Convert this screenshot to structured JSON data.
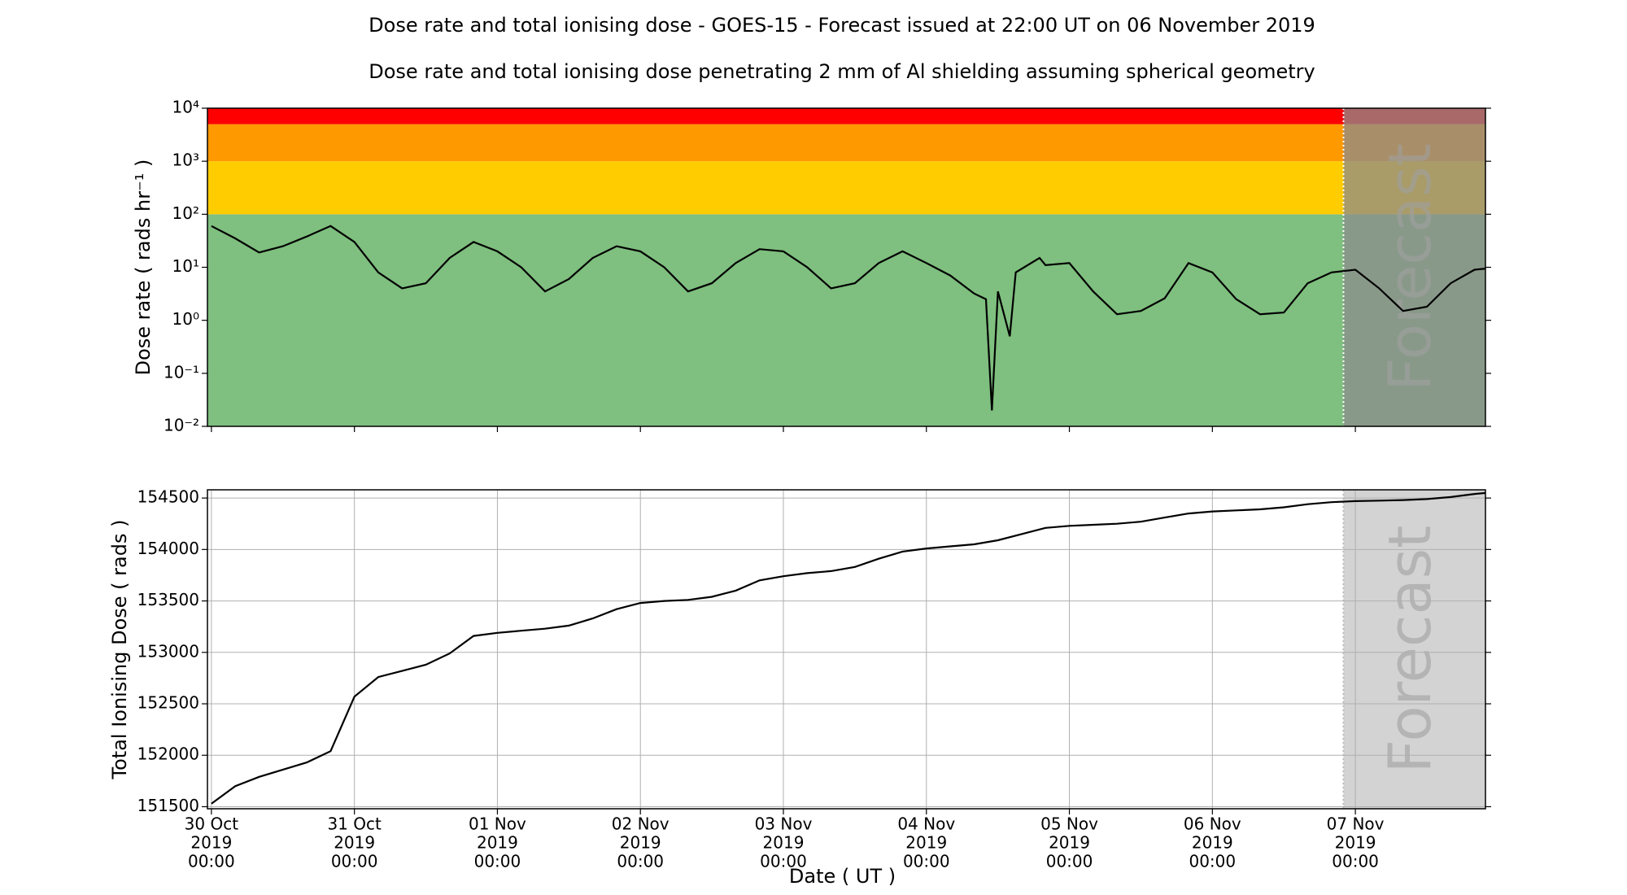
{
  "title": "Dose rate and total ionising dose - GOES-15 - Forecast issued at 22:00 UT on 06 November 2019",
  "subtitle": "Dose rate and total ionising dose penetrating 2 mm of Al shielding assuming spherical geometry",
  "chart_data": [
    {
      "type": "line",
      "log_y": true,
      "grid": false,
      "color": "#000000",
      "ylabel": "Dose rate ( rads hr⁻¹ )",
      "forecast_start": "2019-11-06T22:00",
      "forecast_label": "Forecast",
      "forecast_color": "rgba(140,140,140,0.75)",
      "bands": [
        {
          "from": 0.01,
          "to": 100,
          "color": "#7fbf7f"
        },
        {
          "from": 100,
          "to": 1000,
          "color": "#ffcc00"
        },
        {
          "from": 1000,
          "to": 5000,
          "color": "#ff9900"
        },
        {
          "from": 5000,
          "to": 10000,
          "color": "#ff0000"
        }
      ],
      "xlim": [
        "2019-10-29T23:20",
        "2019-11-07T21:50"
      ],
      "xticks": [
        {
          "value": "2019-10-30T00:00"
        },
        {
          "value": "2019-10-31T00:00"
        },
        {
          "value": "2019-11-01T00:00"
        },
        {
          "value": "2019-11-02T00:00"
        },
        {
          "value": "2019-11-03T00:00"
        },
        {
          "value": "2019-11-04T00:00"
        },
        {
          "value": "2019-11-05T00:00"
        },
        {
          "value": "2019-11-06T00:00"
        },
        {
          "value": "2019-11-07T00:00"
        }
      ],
      "ylim": [
        0.01,
        10000
      ],
      "yticks": [
        {
          "value": 0.01,
          "label": "10⁻²"
        },
        {
          "value": 0.1,
          "label": "10⁻¹"
        },
        {
          "value": 1,
          "label": "10⁰"
        },
        {
          "value": 10,
          "label": "10¹"
        },
        {
          "value": 100,
          "label": "10²"
        },
        {
          "value": 1000,
          "label": "10³"
        },
        {
          "value": 10000,
          "label": "10⁴"
        }
      ],
      "x": [
        "2019-10-30T00:00",
        "2019-10-30T04:00",
        "2019-10-30T08:00",
        "2019-10-30T12:00",
        "2019-10-30T16:00",
        "2019-10-30T20:00",
        "2019-10-31T00:00",
        "2019-10-31T04:00",
        "2019-10-31T08:00",
        "2019-10-31T12:00",
        "2019-10-31T16:00",
        "2019-10-31T20:00",
        "2019-11-01T00:00",
        "2019-11-01T04:00",
        "2019-11-01T08:00",
        "2019-11-01T12:00",
        "2019-11-01T16:00",
        "2019-11-01T20:00",
        "2019-11-02T00:00",
        "2019-11-02T04:00",
        "2019-11-02T08:00",
        "2019-11-02T12:00",
        "2019-11-02T16:00",
        "2019-11-02T20:00",
        "2019-11-03T00:00",
        "2019-11-03T04:00",
        "2019-11-03T08:00",
        "2019-11-03T12:00",
        "2019-11-03T16:00",
        "2019-11-03T20:00",
        "2019-11-04T00:00",
        "2019-11-04T04:00",
        "2019-11-04T08:00",
        "2019-11-04T10:00",
        "2019-11-04T11:00",
        "2019-11-04T12:00",
        "2019-11-04T14:00",
        "2019-11-04T15:00",
        "2019-11-04T19:00",
        "2019-11-04T20:00",
        "2019-11-05T00:00",
        "2019-11-05T04:00",
        "2019-11-05T08:00",
        "2019-11-05T12:00",
        "2019-11-05T16:00",
        "2019-11-05T20:00",
        "2019-11-06T00:00",
        "2019-11-06T04:00",
        "2019-11-06T08:00",
        "2019-11-06T12:00",
        "2019-11-06T16:00",
        "2019-11-06T20:00",
        "2019-11-07T00:00",
        "2019-11-07T04:00",
        "2019-11-07T08:00",
        "2019-11-07T12:00",
        "2019-11-07T16:00",
        "2019-11-07T20:00",
        "2019-11-07T22:00"
      ],
      "values": [
        60,
        35,
        19,
        25,
        38,
        60,
        30,
        8,
        4,
        5,
        15,
        30,
        20,
        10,
        3.5,
        6,
        15,
        25,
        20,
        10,
        3.5,
        5,
        12,
        22,
        20,
        10,
        4,
        5,
        12,
        20,
        12,
        7,
        3.2,
        2.5,
        0.02,
        3.5,
        0.5,
        8,
        15,
        11,
        12,
        3.5,
        1.3,
        1.5,
        2.6,
        12,
        8,
        2.5,
        1.3,
        1.4,
        5,
        8,
        9,
        4,
        1.5,
        1.8,
        5,
        9,
        9.5
      ]
    },
    {
      "type": "line",
      "log_y": false,
      "grid": true,
      "color": "#000000",
      "ylabel": "Total Ionising Dose ( rads )",
      "xlabel": "Date ( UT )",
      "forecast_start": "2019-11-06T22:00",
      "forecast_label": "Forecast",
      "forecast_color": "#d3d3d3",
      "xlim": [
        "2019-10-29T23:20",
        "2019-11-07T21:50"
      ],
      "xticks": [
        {
          "value": "2019-10-30T00:00",
          "label": [
            "30 Oct",
            "2019",
            "00:00"
          ]
        },
        {
          "value": "2019-10-31T00:00",
          "label": [
            "31 Oct",
            "2019",
            "00:00"
          ]
        },
        {
          "value": "2019-11-01T00:00",
          "label": [
            "01 Nov",
            "2019",
            "00:00"
          ]
        },
        {
          "value": "2019-11-02T00:00",
          "label": [
            "02 Nov",
            "2019",
            "00:00"
          ]
        },
        {
          "value": "2019-11-03T00:00",
          "label": [
            "03 Nov",
            "2019",
            "00:00"
          ]
        },
        {
          "value": "2019-11-04T00:00",
          "label": [
            "04 Nov",
            "2019",
            "00:00"
          ]
        },
        {
          "value": "2019-11-05T00:00",
          "label": [
            "05 Nov",
            "2019",
            "00:00"
          ]
        },
        {
          "value": "2019-11-06T00:00",
          "label": [
            "06 Nov",
            "2019",
            "00:00"
          ]
        },
        {
          "value": "2019-11-07T00:00",
          "label": [
            "07 Nov",
            "2019",
            "00:00"
          ]
        }
      ],
      "ylim": [
        151480,
        154580
      ],
      "yticks": [
        151500,
        152000,
        152500,
        153000,
        153500,
        154000,
        154500
      ],
      "x": [
        "2019-10-30T00:00",
        "2019-10-30T04:00",
        "2019-10-30T08:00",
        "2019-10-30T12:00",
        "2019-10-30T16:00",
        "2019-10-30T20:00",
        "2019-10-31T00:00",
        "2019-10-31T04:00",
        "2019-10-31T08:00",
        "2019-10-31T12:00",
        "2019-10-31T16:00",
        "2019-10-31T20:00",
        "2019-11-01T00:00",
        "2019-11-01T04:00",
        "2019-11-01T08:00",
        "2019-11-01T12:00",
        "2019-11-01T16:00",
        "2019-11-01T20:00",
        "2019-11-02T00:00",
        "2019-11-02T04:00",
        "2019-11-02T08:00",
        "2019-11-02T12:00",
        "2019-11-02T16:00",
        "2019-11-02T20:00",
        "2019-11-03T00:00",
        "2019-11-03T04:00",
        "2019-11-03T08:00",
        "2019-11-03T12:00",
        "2019-11-03T16:00",
        "2019-11-03T20:00",
        "2019-11-04T00:00",
        "2019-11-04T04:00",
        "2019-11-04T08:00",
        "2019-11-04T12:00",
        "2019-11-04T16:00",
        "2019-11-04T20:00",
        "2019-11-05T00:00",
        "2019-11-05T04:00",
        "2019-11-05T08:00",
        "2019-11-05T12:00",
        "2019-11-05T16:00",
        "2019-11-05T20:00",
        "2019-11-06T00:00",
        "2019-11-06T04:00",
        "2019-11-06T08:00",
        "2019-11-06T12:00",
        "2019-11-06T16:00",
        "2019-11-06T20:00",
        "2019-11-07T00:00",
        "2019-11-07T04:00",
        "2019-11-07T08:00",
        "2019-11-07T12:00",
        "2019-11-07T16:00",
        "2019-11-07T20:00",
        "2019-11-07T22:00"
      ],
      "values": [
        151530,
        151700,
        151790,
        151860,
        151930,
        152040,
        152570,
        152760,
        152820,
        152880,
        152990,
        153160,
        153190,
        153210,
        153230,
        153260,
        153330,
        153420,
        153480,
        153500,
        153510,
        153540,
        153600,
        153700,
        153740,
        153770,
        153790,
        153830,
        153910,
        153980,
        154010,
        154030,
        154050,
        154090,
        154150,
        154210,
        154230,
        154240,
        154250,
        154270,
        154310,
        154350,
        154370,
        154380,
        154390,
        154410,
        154440,
        154460,
        154470,
        154475,
        154480,
        154490,
        154510,
        154540,
        154550
      ]
    }
  ]
}
